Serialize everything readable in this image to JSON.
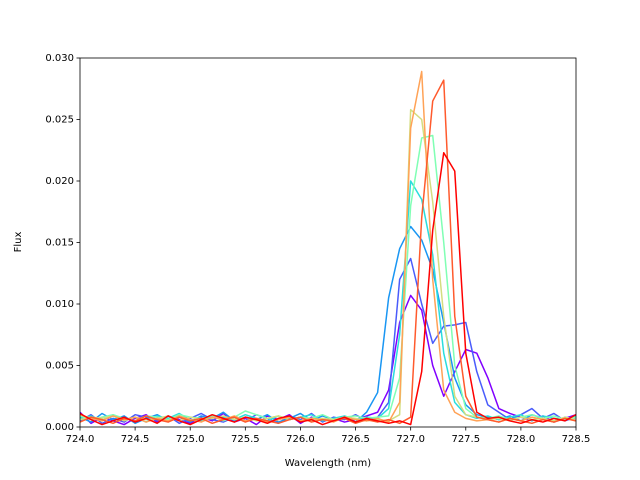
{
  "chart_data": {
    "type": "line",
    "xlabel": "Wavelength (nm)",
    "ylabel": "Flux",
    "xlim": [
      724.0,
      728.5
    ],
    "xticks": [
      {
        "value": 724.0,
        "label": "724.0"
      },
      724.5,
      {
        "value": 725.0,
        "label": "725.0"
      },
      725.5,
      {
        "value": 726.0,
        "label": "726.0"
      },
      726.5,
      {
        "value": 727.0,
        "label": "727.0"
      },
      727.5,
      {
        "value": 728.0,
        "label": "728.0"
      },
      728.5
    ],
    "ylim": [
      0,
      0.03
    ],
    "yticks": [
      {
        "value": 0,
        "label": "0.000"
      },
      0.005,
      {
        "value": 0.01,
        "label": "0.010"
      },
      0.015,
      {
        "value": 0.02,
        "label": "0.020"
      },
      0.025,
      {
        "value": 0.03,
        "label": "0.030"
      }
    ],
    "x": [
      724.0,
      724.1,
      724.2,
      724.3,
      724.4,
      724.5,
      724.6,
      724.7,
      724.8,
      724.9,
      725.0,
      725.1,
      725.2,
      725.3,
      725.4,
      725.5,
      725.6,
      725.7,
      725.8,
      725.9,
      726.0,
      726.1,
      726.2,
      726.3,
      726.4,
      726.5,
      726.6,
      726.7,
      726.8,
      726.9,
      727.0,
      727.1,
      727.2,
      727.3,
      727.4,
      727.5,
      727.6,
      727.7,
      727.8,
      727.9,
      728.0,
      728.1,
      728.2,
      728.3,
      728.4,
      728.5
    ],
    "series": [
      {
        "color": "#8000ff",
        "values": [
          0.0012,
          0.0003,
          0.0008,
          0.0005,
          0.0002,
          0.0007,
          0.001,
          0.0004,
          0.0009,
          0.0006,
          0.0003,
          0.0008,
          0.0005,
          0.0011,
          0.0004,
          0.0007,
          0.0002,
          0.0009,
          0.0006,
          0.001,
          0.0003,
          0.0008,
          0.0005,
          0.0007,
          0.0004,
          0.0006,
          0.0009,
          0.0012,
          0.003,
          0.0085,
          0.0107,
          0.0095,
          0.005,
          0.0025,
          0.0045,
          0.0063,
          0.006,
          0.004,
          0.0015,
          0.0011,
          0.0008,
          0.0005,
          0.0009,
          0.0004,
          0.0007,
          0.001
        ]
      },
      {
        "color": "#4a5cfb",
        "values": [
          0.0005,
          0.001,
          0.0003,
          0.0007,
          0.0004,
          0.001,
          0.0008,
          0.0005,
          0.0009,
          0.0003,
          0.0007,
          0.0011,
          0.0006,
          0.0004,
          0.0008,
          0.0005,
          0.001,
          0.0007,
          0.0003,
          0.0009,
          0.0006,
          0.0011,
          0.0004,
          0.0008,
          0.0006,
          0.001,
          0.0005,
          0.0008,
          0.002,
          0.012,
          0.0137,
          0.01,
          0.0068,
          0.0082,
          0.0083,
          0.0085,
          0.0045,
          0.0018,
          0.0012,
          0.0006,
          0.001,
          0.0015,
          0.0007,
          0.0011,
          0.0005,
          0.0008
        ]
      },
      {
        "color": "#1996f3",
        "values": [
          0.0008,
          0.0004,
          0.0011,
          0.0006,
          0.0009,
          0.0003,
          0.0007,
          0.001,
          0.0005,
          0.0008,
          0.0004,
          0.0009,
          0.0007,
          0.0012,
          0.0005,
          0.0008,
          0.0006,
          0.001,
          0.0004,
          0.0007,
          0.0011,
          0.0005,
          0.0009,
          0.0006,
          0.0008,
          0.0004,
          0.0012,
          0.0028,
          0.0105,
          0.0145,
          0.0163,
          0.0152,
          0.0128,
          0.0085,
          0.004,
          0.0018,
          0.001,
          0.0008,
          0.0006,
          0.0009,
          0.0005,
          0.001,
          0.0007,
          0.0004,
          0.0008,
          0.0006
        ]
      },
      {
        "color": "#2adddd",
        "values": [
          0.0007,
          0.0009,
          0.0005,
          0.001,
          0.0006,
          0.0008,
          0.0004,
          0.0009,
          0.0007,
          0.0011,
          0.0006,
          0.0005,
          0.0009,
          0.0008,
          0.0006,
          0.001,
          0.0007,
          0.0005,
          0.0009,
          0.0006,
          0.0008,
          0.001,
          0.0005,
          0.0007,
          0.0009,
          0.0006,
          0.0008,
          0.0007,
          0.0015,
          0.0075,
          0.02,
          0.0185,
          0.014,
          0.006,
          0.002,
          0.001,
          0.0007,
          0.0009,
          0.0006,
          0.0008,
          0.001,
          0.0005,
          0.0009,
          0.0007,
          0.0006,
          0.0009
        ]
      },
      {
        "color": "#80ffb4",
        "values": [
          0.0009,
          0.0006,
          0.0008,
          0.001,
          0.0007,
          0.0005,
          0.0009,
          0.0008,
          0.0006,
          0.001,
          0.0008,
          0.0007,
          0.0009,
          0.0005,
          0.0008,
          0.0013,
          0.001,
          0.0007,
          0.0009,
          0.0006,
          0.0008,
          0.0007,
          0.001,
          0.0006,
          0.0008,
          0.0009,
          0.0007,
          0.0008,
          0.0009,
          0.004,
          0.018,
          0.0235,
          0.0237,
          0.015,
          0.005,
          0.0015,
          0.0008,
          0.0007,
          0.0009,
          0.0006,
          0.0008,
          0.001,
          0.0007,
          0.0009,
          0.0006,
          0.0008
        ]
      },
      {
        "color": "#d4dd80",
        "values": [
          0.0006,
          0.0008,
          0.0007,
          0.0009,
          0.0005,
          0.0008,
          0.0006,
          0.0007,
          0.0009,
          0.0005,
          0.0008,
          0.0006,
          0.0007,
          0.0009,
          0.0006,
          0.0008,
          0.0005,
          0.0007,
          0.0009,
          0.0006,
          0.0008,
          0.0005,
          0.0007,
          0.0006,
          0.0008,
          0.0007,
          0.0005,
          0.0006,
          0.0005,
          0.001,
          0.0258,
          0.025,
          0.0183,
          0.009,
          0.0025,
          0.001,
          0.0008,
          0.0006,
          0.0007,
          0.0005,
          0.0008,
          0.0006,
          0.0007,
          0.0005,
          0.0008,
          0.0006
        ]
      },
      {
        "color": "#ffa256",
        "values": [
          0.001,
          0.0007,
          0.0005,
          0.0009,
          0.0006,
          0.0008,
          0.0004,
          0.0007,
          0.0005,
          0.0009,
          0.0006,
          0.0004,
          0.0008,
          0.0006,
          0.0009,
          0.0005,
          0.0007,
          0.0004,
          0.0006,
          0.0008,
          0.0005,
          0.0007,
          0.0006,
          0.0004,
          0.0008,
          0.0006,
          0.0005,
          0.0007,
          0.0004,
          0.002,
          0.0243,
          0.0289,
          0.012,
          0.003,
          0.0012,
          0.0007,
          0.0005,
          0.0006,
          0.0004,
          0.0007,
          0.0005,
          0.0008,
          0.0006,
          0.0004,
          0.0007,
          0.0005
        ]
      },
      {
        "color": "#ff5a2d",
        "values": [
          0.0004,
          0.0008,
          0.0006,
          0.0003,
          0.0007,
          0.0005,
          0.0009,
          0.0006,
          0.0004,
          0.0008,
          0.0005,
          0.0007,
          0.0003,
          0.0006,
          0.0008,
          0.0004,
          0.0007,
          0.0005,
          0.0003,
          0.0006,
          0.0008,
          0.0004,
          0.0006,
          0.0005,
          0.0007,
          0.0003,
          0.0006,
          0.0004,
          0.0006,
          0.0003,
          0.0008,
          0.017,
          0.0265,
          0.0282,
          0.009,
          0.0025,
          0.0008,
          0.0006,
          0.0004,
          0.0007,
          0.0005,
          0.0003,
          0.0006,
          0.0004,
          0.0007,
          0.0005
        ]
      },
      {
        "color": "#ff0000",
        "values": [
          0.0011,
          0.0006,
          0.0002,
          0.0005,
          0.0008,
          0.0004,
          0.0007,
          0.0003,
          0.0009,
          0.0005,
          0.0002,
          0.0006,
          0.001,
          0.0007,
          0.0004,
          0.0008,
          0.0006,
          0.0003,
          0.0007,
          0.0009,
          0.0004,
          0.0006,
          0.0002,
          0.0005,
          0.0008,
          0.0004,
          0.0007,
          0.0005,
          0.0003,
          0.0005,
          0.0002,
          0.0045,
          0.016,
          0.0223,
          0.0208,
          0.006,
          0.0012,
          0.0007,
          0.0008,
          0.0005,
          0.0003,
          0.0006,
          0.0004,
          0.0007,
          0.0005,
          0.001
        ]
      }
    ]
  }
}
